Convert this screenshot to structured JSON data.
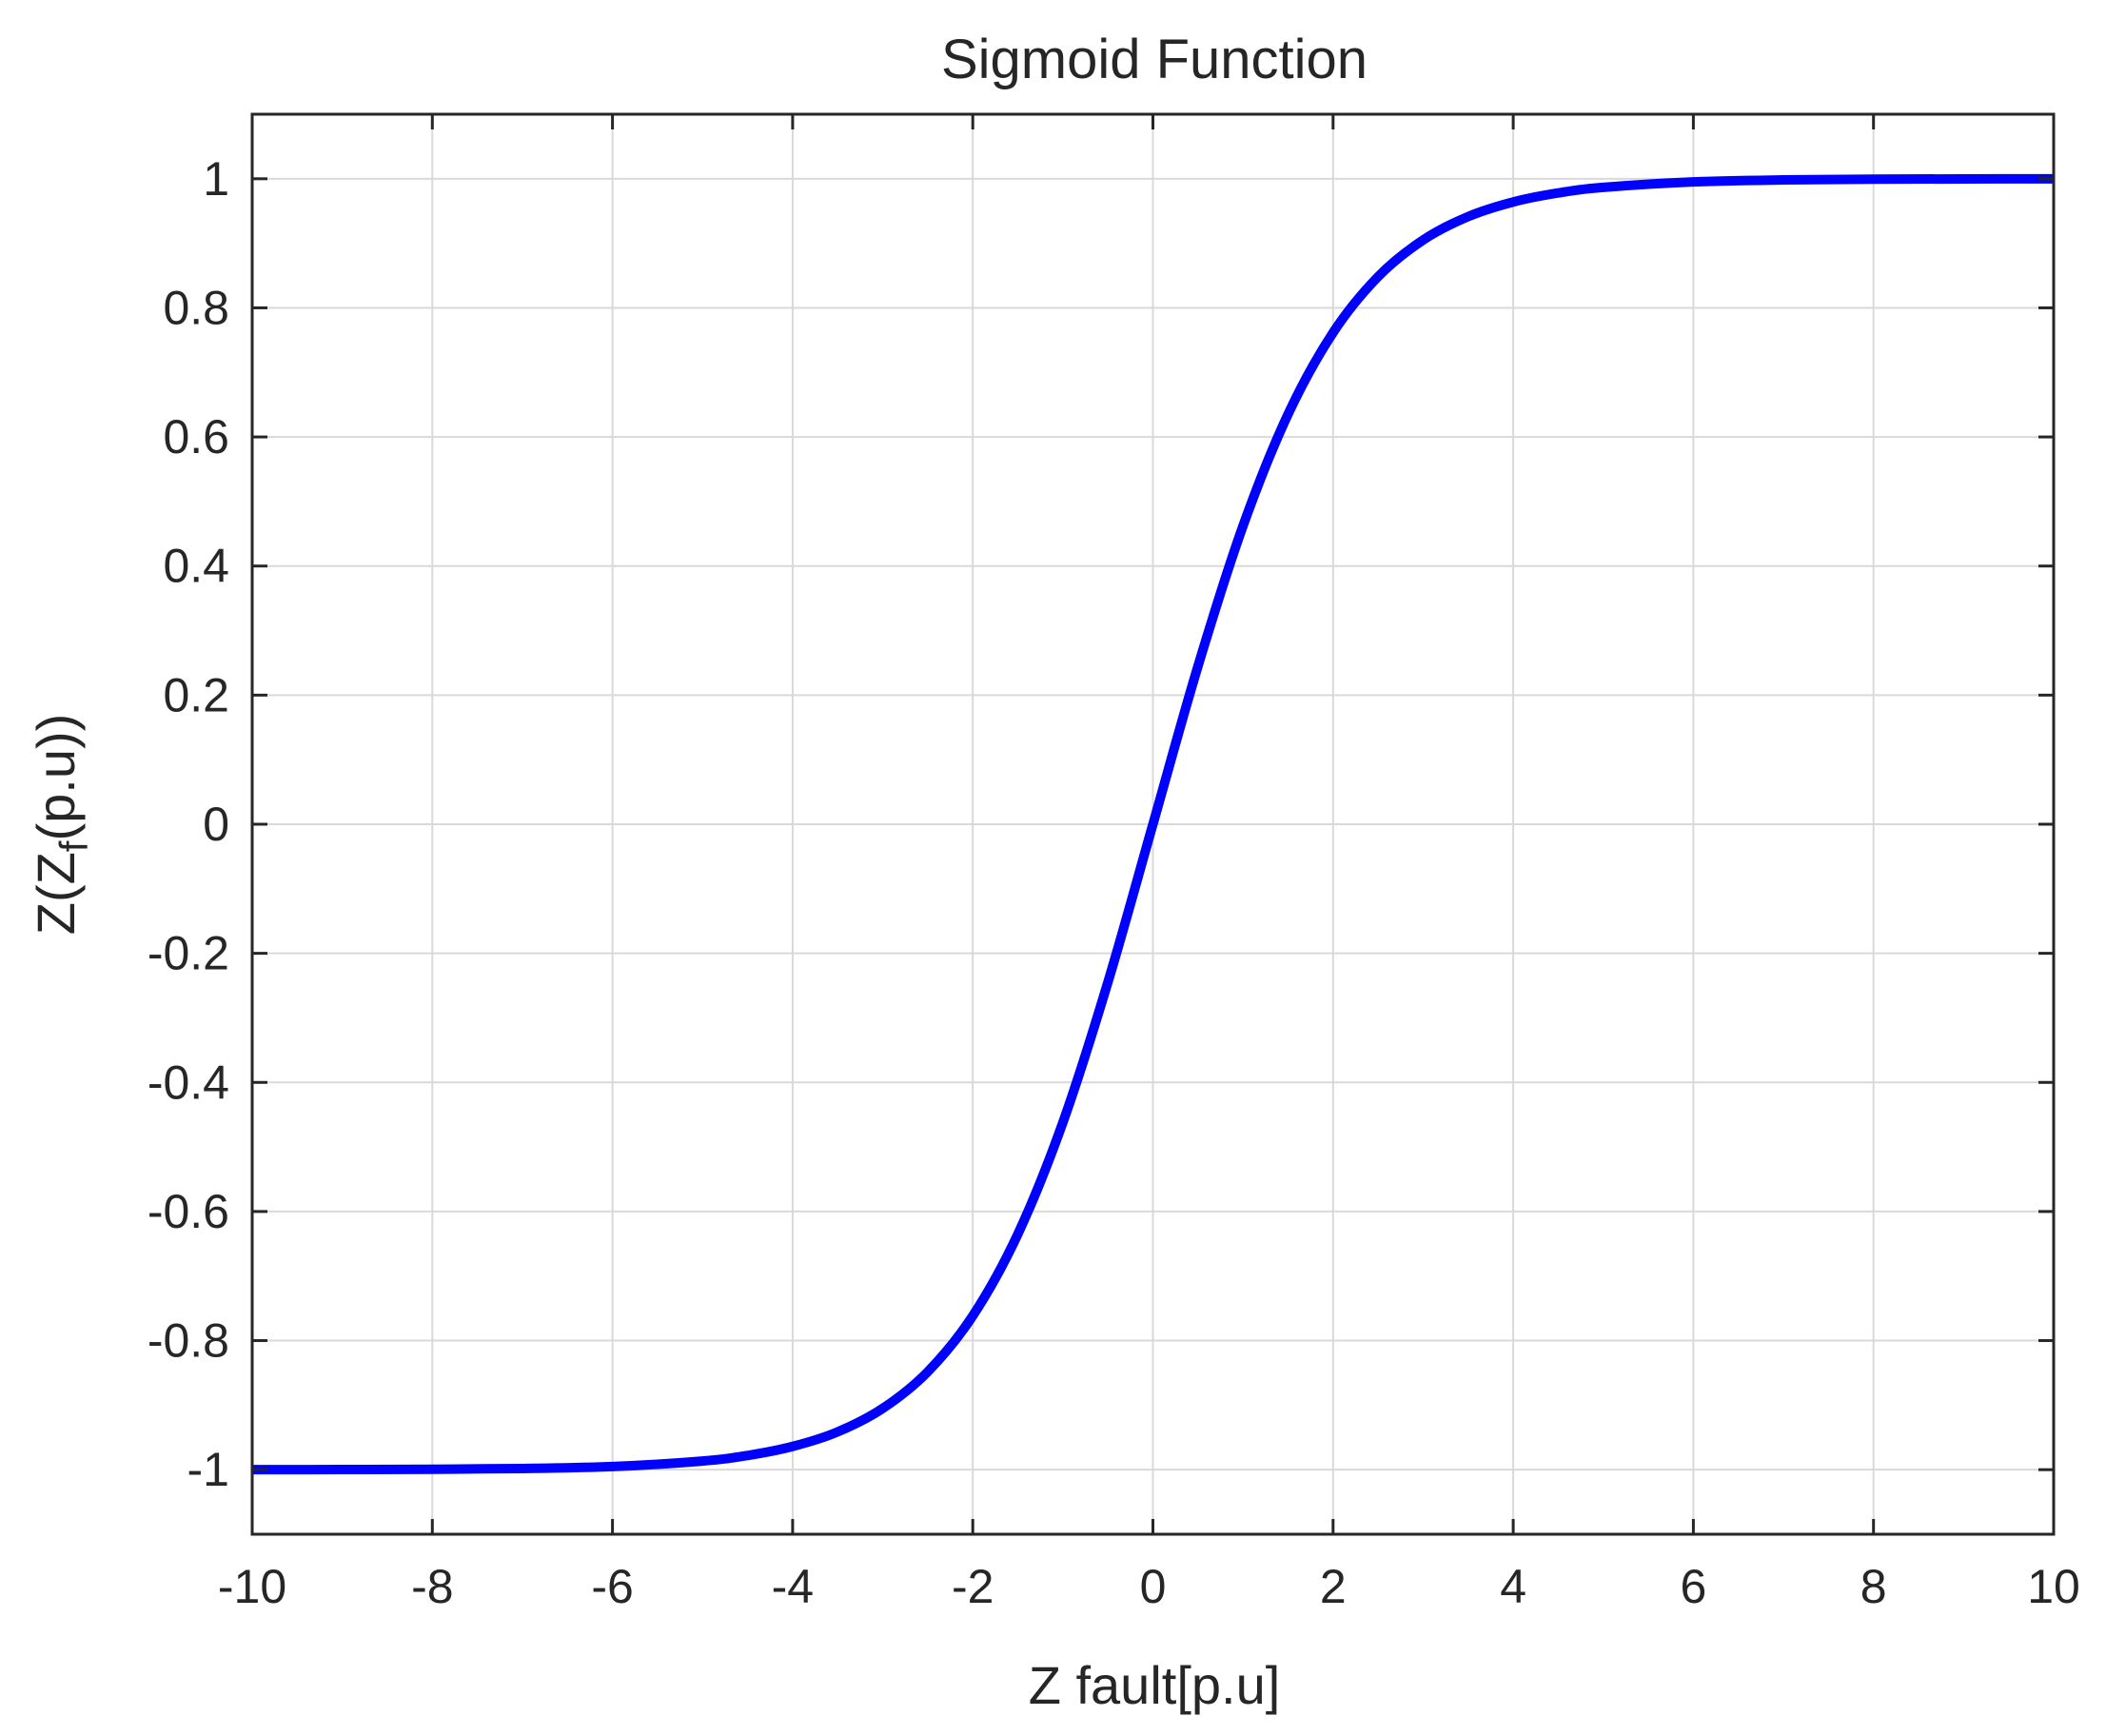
{
  "chart_data": {
    "type": "line",
    "title": "Sigmoid Function",
    "xlabel": "Z fault[p.u]",
    "ylabel": {
      "main_before": "Z(Z",
      "subscript": "f",
      "main_after": "(p.u))"
    },
    "xlim": [
      -10,
      10
    ],
    "ylim": [
      -1.1,
      1.1
    ],
    "grid": true,
    "x_ticks": [
      -10,
      -8,
      -6,
      -4,
      -2,
      0,
      2,
      4,
      6,
      8,
      10
    ],
    "x_tick_labels": [
      "-10",
      "-8",
      "-6",
      "-4",
      "-2",
      "0",
      "2",
      "4",
      "6",
      "8",
      "10"
    ],
    "y_ticks": [
      -1,
      -0.8,
      -0.6,
      -0.4,
      -0.2,
      0,
      0.2,
      0.4,
      0.6,
      0.8,
      1
    ],
    "y_tick_labels": [
      "-1",
      "-0.8",
      "-0.6",
      "-0.4",
      "-0.2",
      "0",
      "0.2",
      "0.4",
      "0.6",
      "0.8",
      "1"
    ],
    "series": [
      {
        "color": "#0000ff",
        "x": [
          -10,
          -9,
          -8,
          -7,
          -6,
          -5,
          -4.5,
          -4,
          -3.5,
          -3,
          -2.5,
          -2,
          -1.5,
          -1,
          -0.5,
          0,
          0.5,
          1,
          1.5,
          2,
          2.5,
          3,
          3.5,
          4,
          4.5,
          5,
          6,
          7,
          8,
          9,
          10
        ],
        "y": [
          -1.0,
          -0.9998,
          -0.9993,
          -0.9982,
          -0.9951,
          -0.9866,
          -0.978,
          -0.964,
          -0.9414,
          -0.9051,
          -0.8483,
          -0.7616,
          -0.6351,
          -0.4621,
          -0.2449,
          0.0,
          0.2449,
          0.4621,
          0.6351,
          0.7616,
          0.8483,
          0.9051,
          0.9414,
          0.964,
          0.978,
          0.9866,
          0.9951,
          0.9982,
          0.9993,
          0.9998,
          1.0
        ]
      }
    ]
  }
}
